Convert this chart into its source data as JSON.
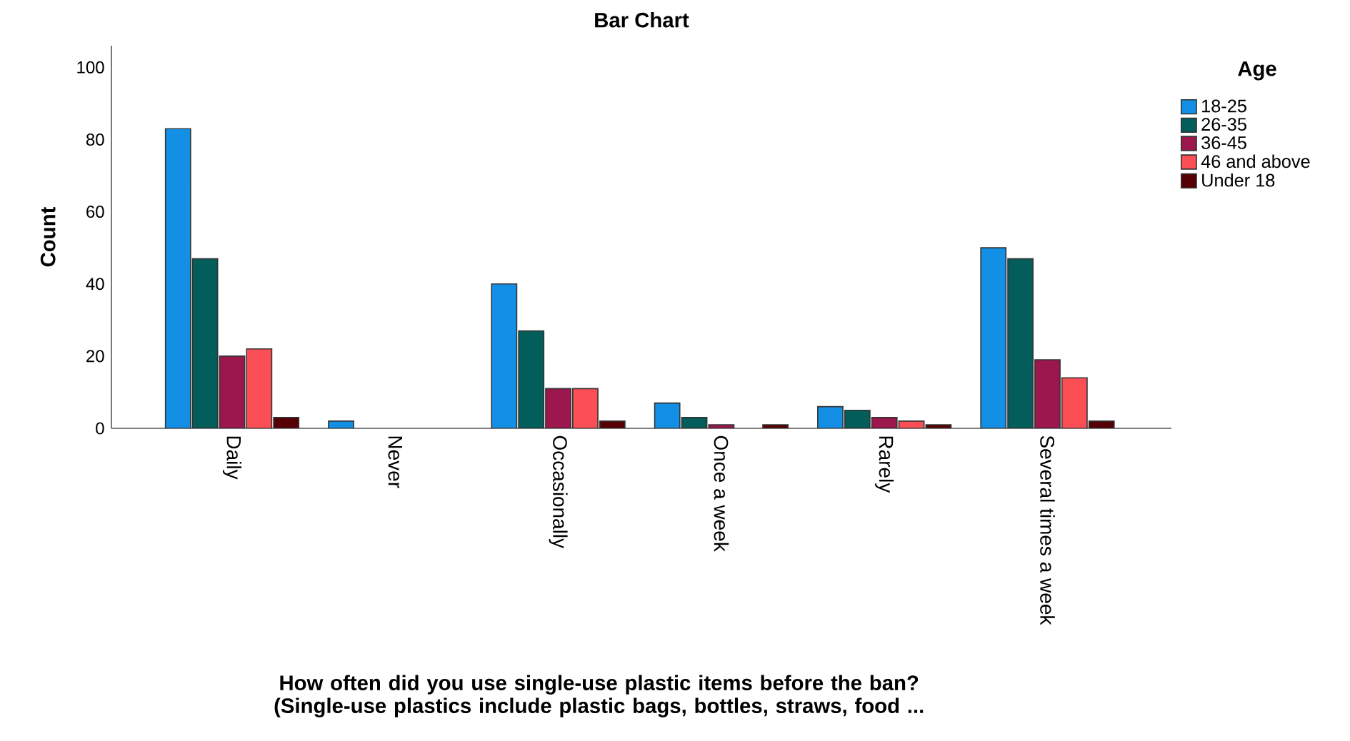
{
  "chart_data": {
    "type": "bar",
    "title": "Bar Chart",
    "xlabel": "How often did you use single-use plastic items before the ban? (Single-use plastics include plastic bags, bottles, straws, food ...",
    "ylabel": "Count",
    "legend_title": "Age",
    "categories": [
      "Daily",
      "Never",
      "Occasionally",
      "Once a week",
      "Rarely",
      "Several times a week"
    ],
    "series": [
      {
        "name": "18-25",
        "color": "#1390e6",
        "values": [
          83,
          2,
          40,
          7,
          6,
          50
        ]
      },
      {
        "name": "26-35",
        "color": "#035d5b",
        "values": [
          47,
          null,
          27,
          3,
          5,
          47
        ]
      },
      {
        "name": "36-45",
        "color": "#9c174e",
        "values": [
          20,
          null,
          11,
          1,
          3,
          19
        ]
      },
      {
        "name": "46 and above",
        "color": "#fc4f55",
        "values": [
          22,
          null,
          11,
          null,
          2,
          14
        ]
      },
      {
        "name": "Under 18",
        "color": "#560006",
        "values": [
          3,
          null,
          2,
          1,
          1,
          2
        ]
      }
    ],
    "ylim": [
      0,
      106
    ],
    "yticks": [
      0,
      20,
      40,
      60,
      80,
      100
    ],
    "grid": false,
    "legend": "top right"
  }
}
